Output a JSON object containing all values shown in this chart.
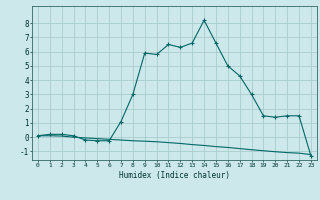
{
  "xlabel": "Humidex (Indice chaleur)",
  "bg_color": "#cce8ea",
  "grid_color": "#aacccc",
  "line_color": "#006666",
  "xlim": [
    -0.5,
    23.5
  ],
  "ylim": [
    -1.6,
    9.2
  ],
  "x_ticks": [
    0,
    1,
    2,
    3,
    4,
    5,
    6,
    7,
    8,
    9,
    10,
    11,
    12,
    13,
    14,
    15,
    16,
    17,
    18,
    19,
    20,
    21,
    22,
    23
  ],
  "y_ticks": [
    -1,
    0,
    1,
    2,
    3,
    4,
    5,
    6,
    7,
    8
  ],
  "line1_x": [
    0,
    1,
    2,
    3,
    4,
    5,
    6,
    7,
    8,
    9,
    10,
    11,
    12,
    13,
    14,
    15,
    16,
    17,
    18,
    19,
    20,
    21,
    22,
    23
  ],
  "line1_y": [
    0.1,
    0.2,
    0.2,
    0.1,
    -0.2,
    -0.25,
    -0.25,
    1.1,
    3.0,
    5.9,
    5.8,
    6.5,
    6.3,
    6.6,
    8.2,
    6.6,
    5.0,
    4.3,
    3.0,
    1.5,
    1.4,
    1.5,
    1.5,
    -1.3
  ],
  "line2_x": [
    0,
    1,
    2,
    3,
    4,
    5,
    6,
    7,
    8,
    9,
    10,
    11,
    12,
    13,
    14,
    15,
    16,
    17,
    18,
    19,
    20,
    21,
    22,
    23
  ],
  "line2_y": [
    0.1,
    0.1,
    0.08,
    0.0,
    -0.05,
    -0.1,
    -0.15,
    -0.2,
    -0.25,
    -0.28,
    -0.32,
    -0.38,
    -0.44,
    -0.52,
    -0.58,
    -0.66,
    -0.72,
    -0.8,
    -0.88,
    -0.95,
    -1.02,
    -1.08,
    -1.12,
    -1.22
  ]
}
